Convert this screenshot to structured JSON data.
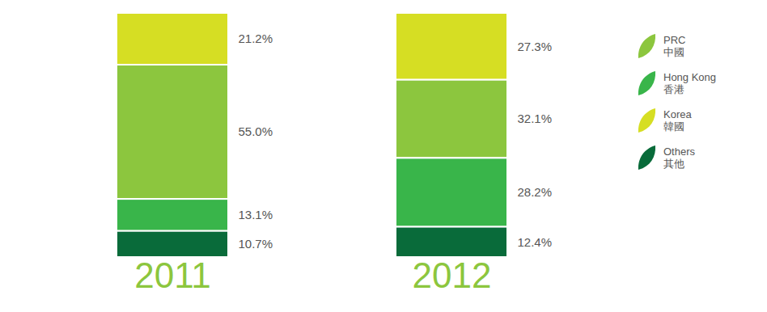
{
  "chart_data": {
    "type": "bar",
    "stacked": true,
    "data_labels": true,
    "tick_labels": "x",
    "legend": "right",
    "categories": [
      "2011",
      "2012"
    ],
    "series": [
      {
        "name": "PRC 中國",
        "color": "#8cc63e",
        "values": [
          55.0,
          32.1
        ],
        "value_labels": [
          "55.0%",
          "32.1%"
        ]
      },
      {
        "name": "Hong Kong 香港",
        "color": "#39b54a",
        "values": [
          13.1,
          28.2
        ],
        "value_labels": [
          "13.1%",
          "28.2%"
        ]
      },
      {
        "name": "Korea 韓國",
        "color": "#d6de23",
        "values": [
          21.2,
          27.3
        ],
        "value_labels": [
          "21.2%",
          "27.3%"
        ]
      },
      {
        "name": "Others 其他",
        "color": "#096b3a",
        "values": [
          10.7,
          12.4
        ],
        "value_labels": [
          "10.7%",
          "12.4%"
        ]
      }
    ]
  }
}
